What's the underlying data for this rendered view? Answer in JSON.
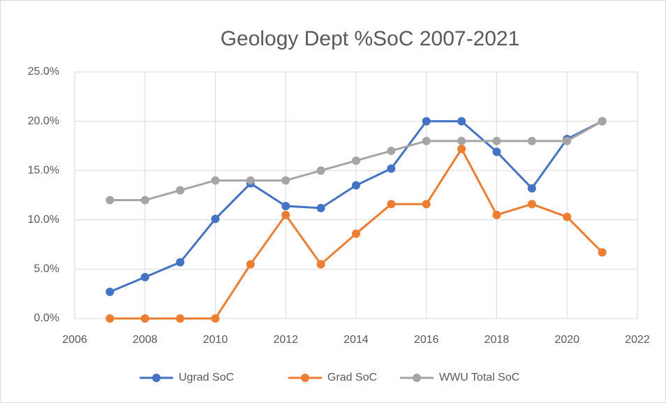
{
  "chart_data": {
    "type": "line",
    "title": "Geology Dept %SoC 2007-2021",
    "x": [
      2007,
      2008,
      2009,
      2010,
      2011,
      2012,
      2013,
      2014,
      2015,
      2016,
      2017,
      2018,
      2019,
      2020,
      2021
    ],
    "series": [
      {
        "name": "Ugrad SoC",
        "color": "#4472c4",
        "values": [
          2.7,
          4.2,
          5.7,
          10.1,
          13.7,
          11.4,
          11.2,
          13.5,
          15.2,
          20.0,
          20.0,
          16.9,
          13.2,
          18.2,
          20.0
        ]
      },
      {
        "name": "Grad SoC",
        "color": "#ed7d31",
        "values": [
          0,
          0,
          0,
          0,
          5.5,
          10.5,
          5.5,
          8.6,
          11.6,
          11.6,
          17.2,
          10.5,
          11.6,
          10.3,
          6.7
        ]
      },
      {
        "name": "WWU Total SoC",
        "color": "#a5a5a5",
        "values": [
          12,
          12,
          13,
          14,
          14,
          14,
          15,
          16,
          17,
          18,
          18,
          18,
          18,
          18,
          20
        ]
      }
    ],
    "xlim": [
      2006,
      2022
    ],
    "xticks": [
      2006,
      2008,
      2010,
      2012,
      2014,
      2016,
      2018,
      2020,
      2022
    ],
    "ylim": [
      0,
      25
    ],
    "yticks": [
      {
        "value": 0,
        "label": "0.0%"
      },
      {
        "value": 5,
        "label": "5.0%"
      },
      {
        "value": 10,
        "label": "10.0%"
      },
      {
        "value": 15,
        "label": "15.0%"
      },
      {
        "value": 20,
        "label": "20.0%"
      },
      {
        "value": 25,
        "label": "25.0%"
      }
    ],
    "grid": true,
    "legend": "bottom"
  }
}
